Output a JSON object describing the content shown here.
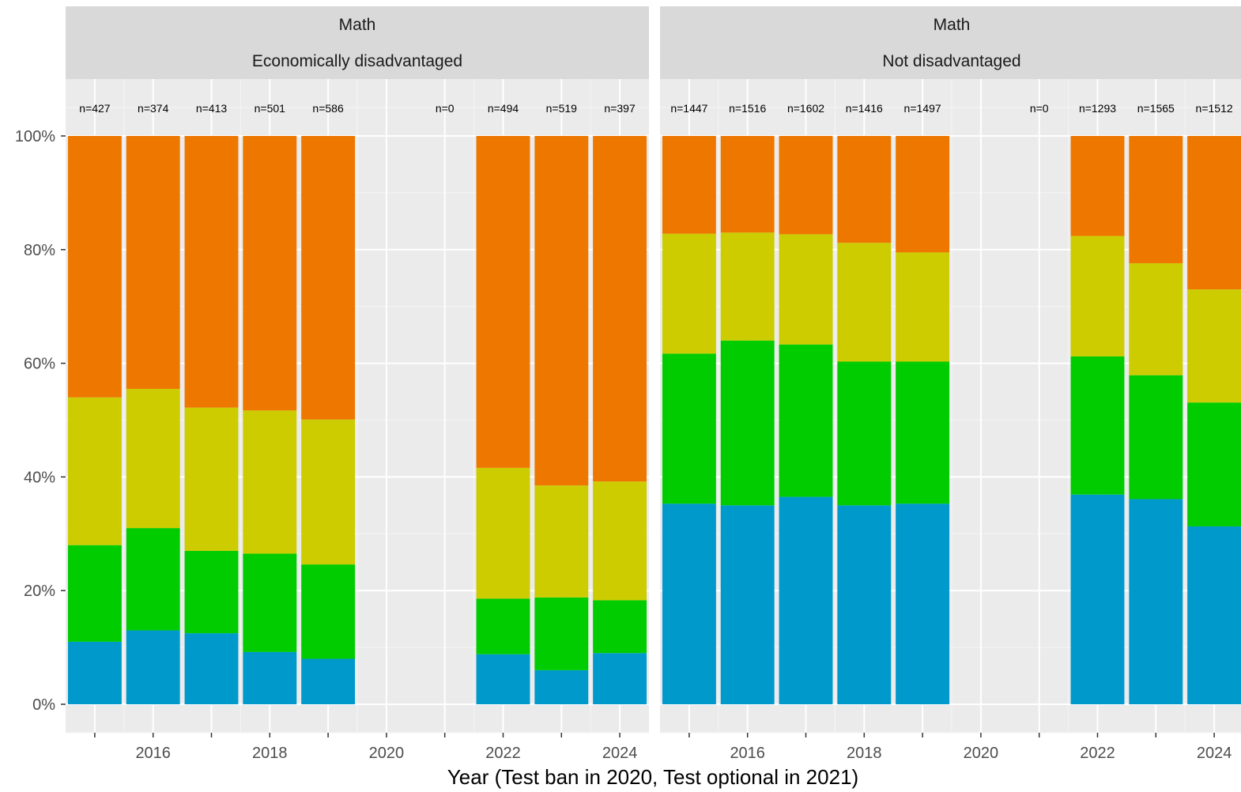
{
  "chart_data": {
    "type": "bar",
    "stacked": true,
    "xlabel": "Year (Test ban in 2020, Test optional in 2021)",
    "ylabel": "",
    "x_tick_labels": [
      "2016",
      "2018",
      "2020",
      "2022",
      "2024"
    ],
    "y_tick_labels": [
      "0%",
      "20%",
      "40%",
      "60%",
      "80%",
      "100%"
    ],
    "ylim": [
      0,
      1
    ],
    "grid": true,
    "legend": "none",
    "series_colors": [
      "#0099cc",
      "#00cc00",
      "#cccc00",
      "#ee7700"
    ],
    "panels": [
      {
        "strip_top": "Math",
        "strip_bottom": "Economically disadvantaged",
        "bars": [
          {
            "year": 2015,
            "n_label": "n=427",
            "segments": [
              0.11,
              0.17,
              0.26,
              0.46
            ]
          },
          {
            "year": 2016,
            "n_label": "n=374",
            "segments": [
              0.13,
              0.18,
              0.245,
              0.445
            ]
          },
          {
            "year": 2017,
            "n_label": "n=413",
            "segments": [
              0.125,
              0.145,
              0.252,
              0.478
            ]
          },
          {
            "year": 2018,
            "n_label": "n=501",
            "segments": [
              0.092,
              0.173,
              0.252,
              0.483
            ]
          },
          {
            "year": 2019,
            "n_label": "n=586",
            "segments": [
              0.08,
              0.166,
              0.255,
              0.499
            ]
          },
          {
            "year": 2021,
            "n_label": "n=0",
            "segments": []
          },
          {
            "year": 2022,
            "n_label": "n=494",
            "segments": [
              0.088,
              0.098,
              0.23,
              0.584
            ]
          },
          {
            "year": 2023,
            "n_label": "n=519",
            "segments": [
              0.06,
              0.128,
              0.197,
              0.615
            ]
          },
          {
            "year": 2024,
            "n_label": "n=397",
            "segments": [
              0.09,
              0.093,
              0.209,
              0.608
            ]
          }
        ]
      },
      {
        "strip_top": "Math",
        "strip_bottom": "Not disadvantaged",
        "bars": [
          {
            "year": 2015,
            "n_label": "n=1447",
            "segments": [
              0.353,
              0.264,
              0.211,
              0.172
            ]
          },
          {
            "year": 2016,
            "n_label": "n=1516",
            "segments": [
              0.35,
              0.29,
              0.19,
              0.17
            ]
          },
          {
            "year": 2017,
            "n_label": "n=1602",
            "segments": [
              0.365,
              0.268,
              0.194,
              0.173
            ]
          },
          {
            "year": 2018,
            "n_label": "n=1416",
            "segments": [
              0.35,
              0.253,
              0.209,
              0.188
            ]
          },
          {
            "year": 2019,
            "n_label": "n=1497",
            "segments": [
              0.353,
              0.25,
              0.192,
              0.205
            ]
          },
          {
            "year": 2021,
            "n_label": "n=0",
            "segments": []
          },
          {
            "year": 2022,
            "n_label": "n=1293",
            "segments": [
              0.369,
              0.243,
              0.212,
              0.176
            ]
          },
          {
            "year": 2023,
            "n_label": "n=1565",
            "segments": [
              0.361,
              0.218,
              0.197,
              0.224
            ]
          },
          {
            "year": 2024,
            "n_label": "n=1512",
            "segments": [
              0.313,
              0.218,
              0.199,
              0.27
            ]
          }
        ]
      }
    ]
  }
}
